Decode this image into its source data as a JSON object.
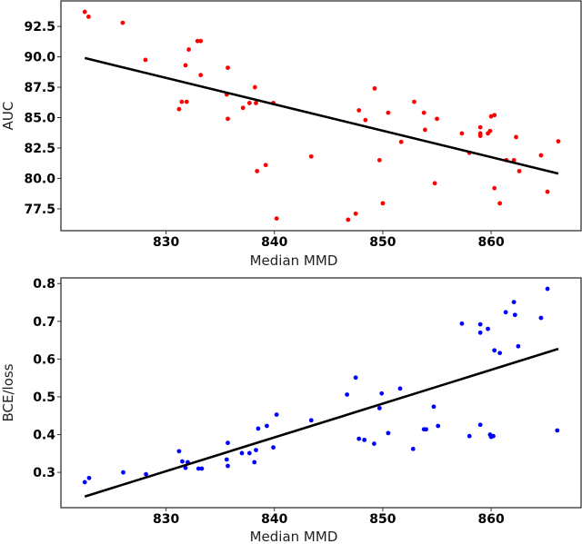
{
  "chart_data": [
    {
      "type": "scatter",
      "title": "",
      "xlabel": "Median MMD",
      "ylabel": "AUC",
      "xlim": [
        820.3,
        868.3
      ],
      "ylim": [
        75.7,
        94.6
      ],
      "xticks": [
        "830",
        "840",
        "850",
        "860"
      ],
      "xtick_values": [
        830,
        840,
        850,
        860
      ],
      "yticks": [
        "77.5",
        "80.0",
        "82.5",
        "85.0",
        "87.5",
        "90.0",
        "92.5"
      ],
      "ytick_values": [
        77.5,
        80.0,
        82.5,
        85.0,
        87.5,
        90.0,
        92.5
      ],
      "grid": false,
      "point_color": "#ff0000",
      "line_color": "#000000",
      "fit_line": [
        [
          822.5,
          89.9
        ],
        [
          866.2,
          80.4
        ]
      ],
      "points": [
        [
          822.5,
          93.7
        ],
        [
          822.85,
          93.3
        ],
        [
          826.0,
          92.8
        ],
        [
          828.1,
          89.75
        ],
        [
          832.1,
          90.6
        ],
        [
          832.9,
          91.3
        ],
        [
          833.2,
          91.3
        ],
        [
          831.8,
          89.3
        ],
        [
          833.2,
          88.5
        ],
        [
          835.7,
          89.1
        ],
        [
          831.45,
          86.3
        ],
        [
          831.9,
          86.3
        ],
        [
          831.2,
          85.7
        ],
        [
          835.6,
          86.9
        ],
        [
          835.7,
          84.9
        ],
        [
          838.2,
          87.5
        ],
        [
          837.1,
          85.8
        ],
        [
          837.7,
          86.2
        ],
        [
          838.3,
          86.2
        ],
        [
          839.9,
          86.2
        ],
        [
          843.4,
          81.8
        ],
        [
          839.2,
          81.1
        ],
        [
          838.4,
          80.6
        ],
        [
          840.2,
          76.7
        ],
        [
          849.25,
          87.4
        ],
        [
          852.9,
          86.3
        ],
        [
          847.8,
          85.6
        ],
        [
          850.5,
          85.4
        ],
        [
          853.8,
          85.4
        ],
        [
          848.4,
          84.8
        ],
        [
          855.0,
          84.9
        ],
        [
          853.9,
          84.0
        ],
        [
          851.7,
          83.0
        ],
        [
          857.3,
          83.7
        ],
        [
          859.0,
          84.2
        ],
        [
          859.0,
          83.7
        ],
        [
          859.0,
          83.5
        ],
        [
          859.7,
          83.7
        ],
        [
          859.9,
          83.9
        ],
        [
          860.0,
          85.1
        ],
        [
          860.3,
          85.2
        ],
        [
          862.3,
          83.4
        ],
        [
          866.2,
          83.05
        ],
        [
          858.0,
          82.1
        ],
        [
          861.4,
          81.5
        ],
        [
          862.1,
          81.5
        ],
        [
          864.6,
          81.9
        ],
        [
          862.6,
          80.6
        ],
        [
          849.7,
          81.5
        ],
        [
          854.8,
          79.6
        ],
        [
          860.3,
          79.2
        ],
        [
          865.2,
          78.9
        ],
        [
          850.0,
          77.95
        ],
        [
          860.8,
          77.95
        ],
        [
          847.5,
          77.1
        ],
        [
          846.8,
          76.6
        ]
      ]
    },
    {
      "type": "scatter",
      "title": "",
      "xlabel": "Median MMD",
      "ylabel": "BCE/loss",
      "xlim": [
        820.3,
        868.3
      ],
      "ylim": [
        0.2065,
        0.815
      ],
      "xticks": [
        "830",
        "840",
        "850",
        "860"
      ],
      "xtick_values": [
        830,
        840,
        850,
        860
      ],
      "yticks": [
        "0.3",
        "0.4",
        "0.5",
        "0.6",
        "0.7",
        "0.8"
      ],
      "ytick_values": [
        0.3,
        0.4,
        0.5,
        0.6,
        0.7,
        0.8
      ],
      "grid": false,
      "point_color": "#0000ff",
      "line_color": "#000000",
      "fit_line": [
        [
          822.5,
          0.236
        ],
        [
          866.2,
          0.627
        ]
      ],
      "points": [
        [
          822.5,
          0.274
        ],
        [
          822.9,
          0.285
        ],
        [
          826.05,
          0.3
        ],
        [
          828.15,
          0.295
        ],
        [
          831.2,
          0.356
        ],
        [
          831.5,
          0.329
        ],
        [
          831.8,
          0.312
        ],
        [
          832.0,
          0.327
        ],
        [
          833.0,
          0.31
        ],
        [
          833.3,
          0.31
        ],
        [
          835.7,
          0.378
        ],
        [
          835.6,
          0.334
        ],
        [
          835.7,
          0.317
        ],
        [
          837.0,
          0.351
        ],
        [
          837.7,
          0.351
        ],
        [
          838.3,
          0.359
        ],
        [
          838.15,
          0.327
        ],
        [
          838.5,
          0.416
        ],
        [
          839.3,
          0.423
        ],
        [
          839.9,
          0.366
        ],
        [
          840.2,
          0.453
        ],
        [
          843.4,
          0.438
        ],
        [
          846.7,
          0.506
        ],
        [
          847.5,
          0.551
        ],
        [
          849.9,
          0.509
        ],
        [
          849.7,
          0.47
        ],
        [
          851.6,
          0.522
        ],
        [
          854.7,
          0.474
        ],
        [
          847.8,
          0.389
        ],
        [
          848.3,
          0.386
        ],
        [
          849.2,
          0.376
        ],
        [
          850.5,
          0.404
        ],
        [
          852.8,
          0.362
        ],
        [
          853.8,
          0.414
        ],
        [
          854.0,
          0.414
        ],
        [
          855.1,
          0.423
        ],
        [
          857.3,
          0.694
        ],
        [
          859.0,
          0.692
        ],
        [
          859.0,
          0.67
        ],
        [
          859.7,
          0.68
        ],
        [
          860.3,
          0.623
        ],
        [
          860.8,
          0.616
        ],
        [
          861.35,
          0.724
        ],
        [
          862.1,
          0.751
        ],
        [
          862.2,
          0.717
        ],
        [
          862.5,
          0.634
        ],
        [
          864.6,
          0.709
        ],
        [
          865.2,
          0.786
        ],
        [
          866.1,
          0.411
        ],
        [
          859.0,
          0.426
        ],
        [
          858.0,
          0.396
        ],
        [
          859.9,
          0.4
        ],
        [
          860.0,
          0.394
        ],
        [
          860.2,
          0.396
        ]
      ]
    }
  ]
}
